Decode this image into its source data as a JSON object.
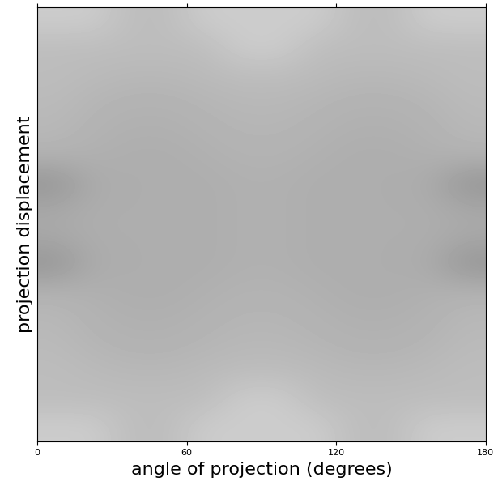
{
  "chart_data": {
    "type": "heatmap",
    "x_label": "angle of projection (degrees)",
    "y_label": "projection displacement",
    "xlim": [
      0,
      180
    ],
    "xticks": [
      0,
      60,
      120,
      180
    ],
    "ylim": [
      -1,
      1
    ],
    "tick_labels": "x",
    "grid": false,
    "value_range": [
      0,
      1
    ],
    "cells": [
      [
        0.8,
        0.8,
        0.74,
        0.74,
        0.8,
        0.8,
        0.8,
        0.8,
        0.74,
        0.74,
        0.8,
        0.8
      ],
      [
        0.74,
        0.74,
        0.74,
        0.74,
        0.74,
        0.8,
        0.8,
        0.74,
        0.74,
        0.74,
        0.74,
        0.74
      ],
      [
        0.74,
        0.73,
        0.72,
        0.72,
        0.73,
        0.74,
        0.74,
        0.73,
        0.72,
        0.72,
        0.73,
        0.74
      ],
      [
        0.73,
        0.71,
        0.7,
        0.7,
        0.71,
        0.72,
        0.72,
        0.71,
        0.7,
        0.7,
        0.71,
        0.73
      ],
      [
        0.72,
        0.7,
        0.69,
        0.69,
        0.7,
        0.71,
        0.71,
        0.7,
        0.69,
        0.69,
        0.7,
        0.72
      ],
      [
        0.7,
        0.69,
        0.68,
        0.68,
        0.69,
        0.7,
        0.7,
        0.69,
        0.68,
        0.68,
        0.69,
        0.7
      ],
      [
        0.58,
        0.67,
        0.68,
        0.68,
        0.68,
        0.69,
        0.69,
        0.68,
        0.68,
        0.68,
        0.67,
        0.58
      ],
      [
        0.66,
        0.68,
        0.68,
        0.68,
        0.68,
        0.69,
        0.69,
        0.68,
        0.68,
        0.68,
        0.68,
        0.66
      ],
      [
        0.66,
        0.68,
        0.68,
        0.68,
        0.68,
        0.69,
        0.69,
        0.68,
        0.68,
        0.68,
        0.68,
        0.66
      ],
      [
        0.58,
        0.67,
        0.68,
        0.68,
        0.68,
        0.69,
        0.69,
        0.68,
        0.68,
        0.68,
        0.67,
        0.58
      ],
      [
        0.7,
        0.69,
        0.68,
        0.68,
        0.69,
        0.7,
        0.7,
        0.69,
        0.68,
        0.68,
        0.69,
        0.7
      ],
      [
        0.72,
        0.7,
        0.69,
        0.69,
        0.7,
        0.71,
        0.71,
        0.7,
        0.69,
        0.69,
        0.7,
        0.72
      ],
      [
        0.73,
        0.71,
        0.7,
        0.7,
        0.71,
        0.72,
        0.72,
        0.71,
        0.7,
        0.7,
        0.71,
        0.73
      ],
      [
        0.74,
        0.73,
        0.72,
        0.72,
        0.73,
        0.74,
        0.74,
        0.73,
        0.72,
        0.72,
        0.73,
        0.74
      ],
      [
        0.74,
        0.74,
        0.74,
        0.74,
        0.74,
        0.8,
        0.8,
        0.74,
        0.74,
        0.74,
        0.74,
        0.74
      ],
      [
        0.8,
        0.8,
        0.74,
        0.74,
        0.8,
        0.8,
        0.8,
        0.8,
        0.74,
        0.74,
        0.8,
        0.8
      ]
    ]
  }
}
